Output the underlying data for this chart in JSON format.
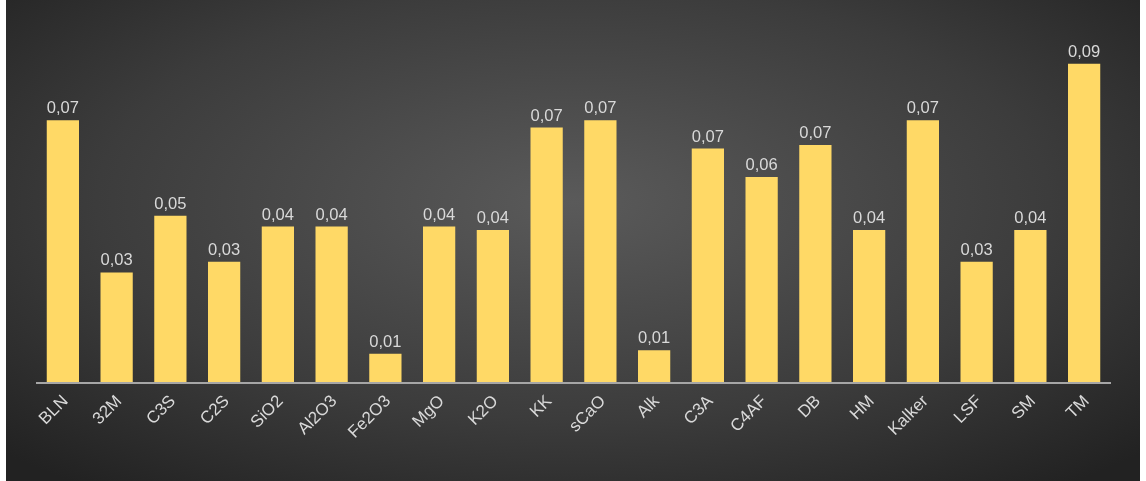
{
  "chart_data": {
    "type": "bar",
    "categories": [
      "BLN",
      "32M",
      "C3S",
      "C2S",
      "SiO2",
      "Al2O3",
      "Fe2O3",
      "MgO",
      "K2O",
      "KK",
      "sCaO",
      "Alk",
      "C3A",
      "C4AF",
      "DB",
      "HM",
      "Kalker",
      "LSF",
      "SM",
      "TM"
    ],
    "values": [
      0.074,
      0.031,
      0.047,
      0.034,
      0.044,
      0.044,
      0.008,
      0.044,
      0.043,
      0.072,
      0.074,
      0.009,
      0.066,
      0.058,
      0.067,
      0.043,
      0.074,
      0.034,
      0.043,
      0.09
    ],
    "value_labels": [
      "0,07",
      "0,03",
      "0,05",
      "0,03",
      "0,04",
      "0,04",
      "0,01",
      "0,04",
      "0,04",
      "0,07",
      "0,07",
      "0,01",
      "0,07",
      "0,06",
      "0,07",
      "0,04",
      "0,07",
      "0,03",
      "0,04",
      "0,09"
    ],
    "color": "#ffd966"
  }
}
